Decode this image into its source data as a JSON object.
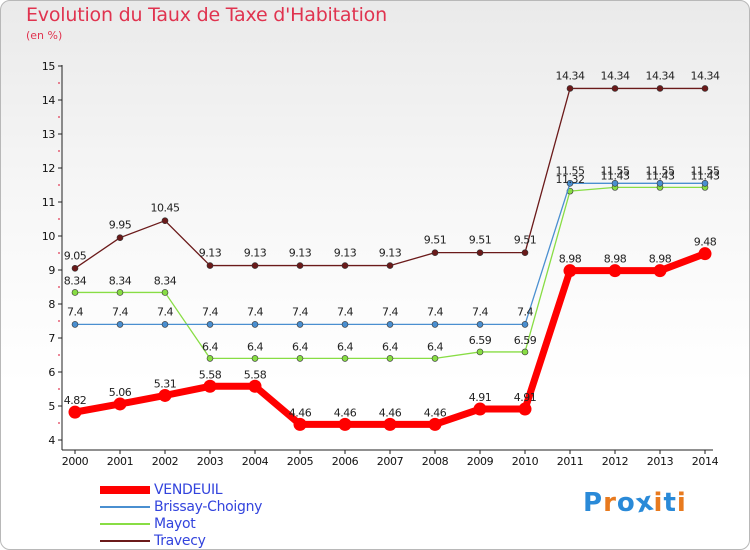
{
  "title": "Evolution du Taux de Taxe d'Habitation",
  "unit": "(en %)",
  "logo": {
    "letters": [
      "P",
      "r",
      "o",
      "x",
      "i",
      "t",
      "i"
    ],
    "colors": [
      "#2a8ad8",
      "#e87a1e",
      "#2a8ad8",
      "#2a8ad8",
      "#e87a1e",
      "#2a8ad8",
      "#e87a1e"
    ]
  },
  "chart_data": {
    "type": "line",
    "x": [
      2000,
      2001,
      2002,
      2003,
      2004,
      2005,
      2006,
      2007,
      2008,
      2009,
      2010,
      2011,
      2012,
      2013,
      2014
    ],
    "ylim": [
      4,
      15
    ],
    "yticks": [
      4,
      5,
      6,
      7,
      8,
      9,
      10,
      11,
      12,
      13,
      14,
      15
    ],
    "grid": false,
    "legend_position": "bottom-left",
    "series": [
      {
        "name": "VENDEUIL",
        "color": "#ff0000",
        "values": [
          4.82,
          5.06,
          5.31,
          5.58,
          5.58,
          4.46,
          4.46,
          4.46,
          4.46,
          4.91,
          4.91,
          8.98,
          8.98,
          8.98,
          9.48
        ],
        "labels": [
          "4.82",
          "5.06",
          "5.31",
          "5.58",
          "5.58",
          "4.46",
          "4.46",
          "4.46",
          "4.46",
          "4.91",
          "4.91",
          "8.98",
          "8.98",
          "8.98",
          "9.48"
        ]
      },
      {
        "name": "Brissay-Choigny",
        "color": "#4a8fd0",
        "values": [
          7.4,
          7.4,
          7.4,
          7.4,
          7.4,
          7.4,
          7.4,
          7.4,
          7.4,
          7.4,
          7.4,
          11.55,
          11.55,
          11.55,
          11.55
        ],
        "labels": [
          "7.4",
          "7.4",
          "7.4",
          "7.4",
          "7.4",
          "7.4",
          "7.4",
          "7.4",
          "7.4",
          "7.4",
          "7.4",
          "11.55",
          "11.55",
          "11.55",
          "11.55"
        ]
      },
      {
        "name": "Mayot",
        "color": "#88dd44",
        "values": [
          8.34,
          8.34,
          8.34,
          6.4,
          6.4,
          6.4,
          6.4,
          6.4,
          6.4,
          6.59,
          6.59,
          11.32,
          11.43,
          11.43,
          11.43
        ],
        "labels": [
          "8.34",
          "8.34",
          "8.34",
          "6.4",
          "6.4",
          "6.4",
          "6.4",
          "6.4",
          "6.4",
          "6.59",
          "6.59",
          "11.32",
          "11.43",
          "11.43",
          "11.43"
        ]
      },
      {
        "name": "Travecy",
        "color": "#6b1a1a",
        "values": [
          9.05,
          9.95,
          10.45,
          9.13,
          9.13,
          9.13,
          9.13,
          9.13,
          9.51,
          9.51,
          9.51,
          14.34,
          14.34,
          14.34,
          14.34
        ],
        "labels": [
          "9.05",
          "9.95",
          "10.45",
          "9.13",
          "9.13",
          "9.13",
          "9.13",
          "9.13",
          "9.51",
          "9.51",
          "9.51",
          "14.34",
          "14.34",
          "14.34",
          "14.34"
        ]
      }
    ]
  }
}
